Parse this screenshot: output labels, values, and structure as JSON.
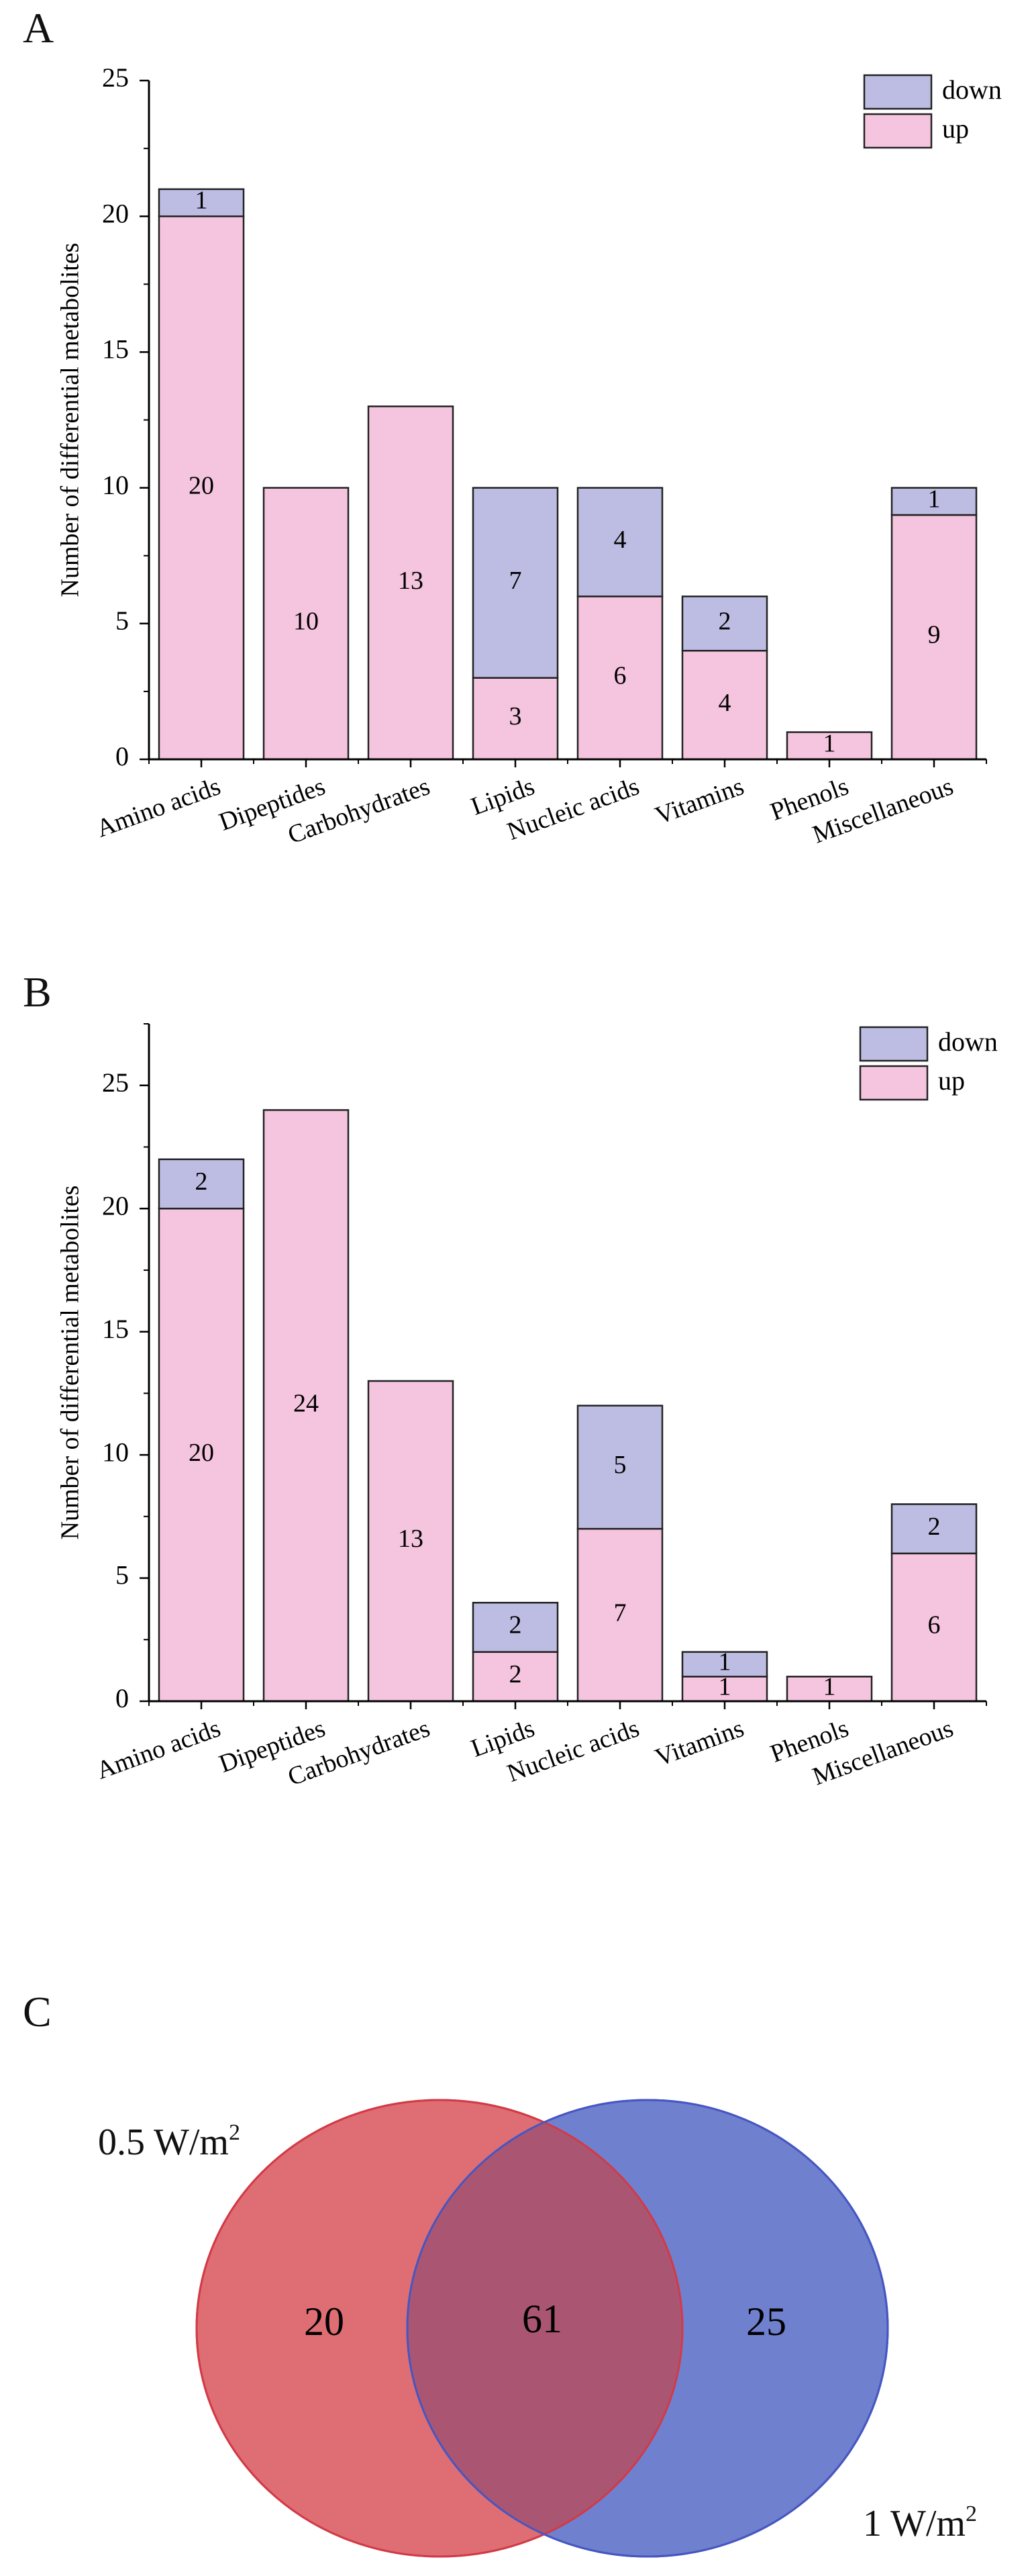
{
  "panels": {
    "a": "A",
    "b": "B",
    "c": "C"
  },
  "colors": {
    "up": "#F5C4DE",
    "down": "#BDBDE3",
    "outline": "#222222",
    "venn_left": "#DE6E73",
    "venn_right": "#6F80CF",
    "venn_overlap": "#AA5673"
  },
  "chart_data": [
    {
      "type": "bar",
      "stacked": true,
      "panel": "A",
      "categories": [
        "Amino acids",
        "Dipeptides",
        "Carbohydrates",
        "Lipids",
        "Nucleic acids",
        "Vitamins",
        "Phenols",
        "Miscellaneous"
      ],
      "series": [
        {
          "name": "up",
          "values": [
            20,
            10,
            13,
            3,
            6,
            4,
            1,
            9
          ]
        },
        {
          "name": "down",
          "values": [
            1,
            0,
            0,
            7,
            4,
            2,
            0,
            1
          ]
        }
      ],
      "ylabel": "Number of differential metabolites",
      "xlabel": "",
      "ylim": [
        0,
        25
      ],
      "yticks": [
        0,
        5,
        10,
        15,
        20,
        25
      ],
      "legend": {
        "position": "top-right",
        "entries": [
          "down",
          "up"
        ]
      }
    },
    {
      "type": "bar",
      "stacked": true,
      "panel": "B",
      "categories": [
        "Amino acids",
        "Dipeptides",
        "Carbohydrates",
        "Lipids",
        "Nucleic acids",
        "Vitamins",
        "Phenols",
        "Miscellaneous"
      ],
      "series": [
        {
          "name": "up",
          "values": [
            20,
            24,
            13,
            2,
            7,
            1,
            1,
            6
          ]
        },
        {
          "name": "down",
          "values": [
            2,
            0,
            0,
            2,
            5,
            1,
            0,
            2
          ]
        }
      ],
      "ylabel": "Number of differential metabolites",
      "xlabel": "",
      "ylim": [
        0,
        27.5
      ],
      "yticks": [
        0,
        5,
        10,
        15,
        20,
        25
      ],
      "legend": {
        "position": "top-right",
        "entries": [
          "down",
          "up"
        ]
      }
    }
  ],
  "venn": {
    "left_only": "20",
    "overlap": "61",
    "right_only": "25",
    "left_label": "0.5 W/m",
    "right_label": "1 W/m",
    "superscript": "2"
  }
}
